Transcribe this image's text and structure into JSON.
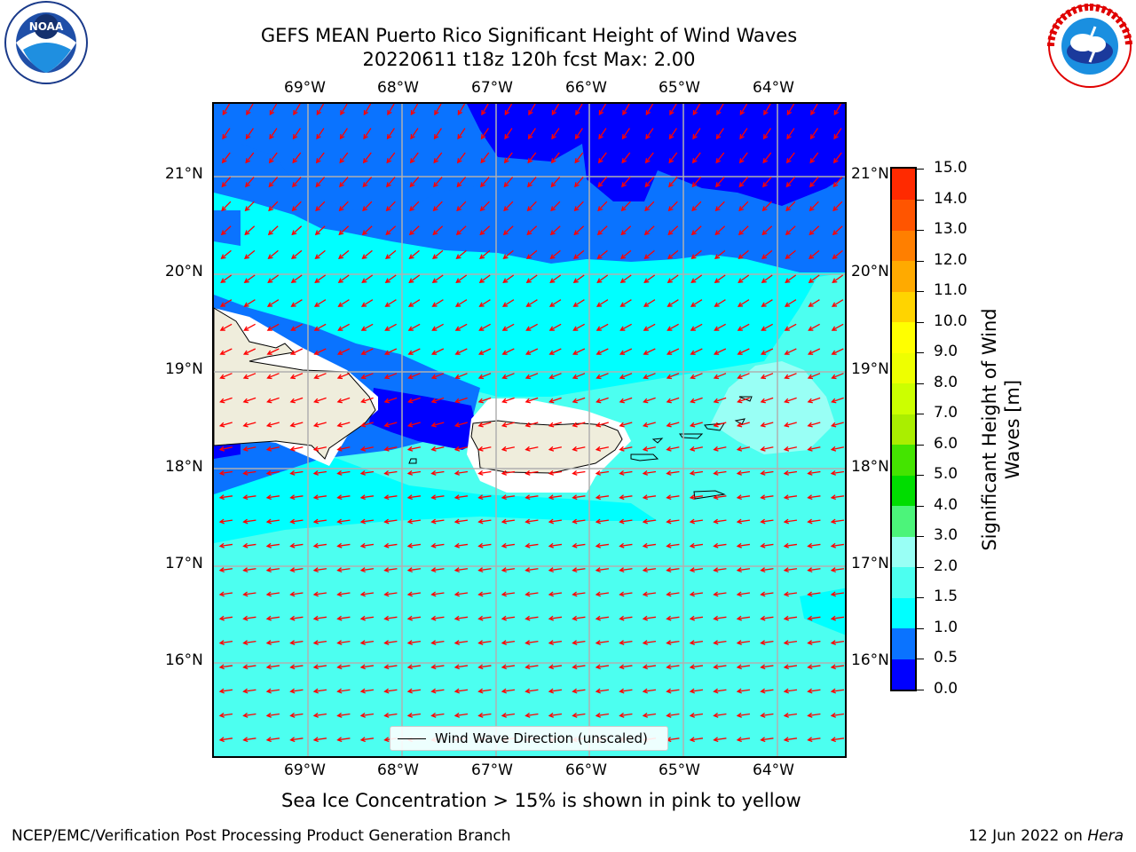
{
  "title": {
    "line1": "GEFS MEAN Puerto Rico Significant Height of Wind Waves",
    "line2": "20220611 t18z 120h fcst   Max: 2.00"
  },
  "logos": {
    "left": {
      "name": "NOAA",
      "ring_text": "NATIONAL OCEANIC AND ATMOSPHERIC ADMINISTRATION · U.S. DEPARTMENT OF COMMERCE"
    },
    "right": {
      "ring_text": "NATIONAL WEATHER SERVICE"
    }
  },
  "map": {
    "region": "Puerto Rico",
    "lon_labels": [
      "69°W",
      "68°W",
      "67°W",
      "66°W",
      "65°W",
      "64°W"
    ],
    "lat_labels": [
      "21°N",
      "20°N",
      "19°N",
      "18°N",
      "17°N",
      "16°N"
    ],
    "gridlines": true,
    "land_color": "#efeddc",
    "arrow_color": "#ff0000"
  },
  "legend": {
    "label": "Wind Wave Direction (unscaled)"
  },
  "colorbar": {
    "label": "Significant Height of Wind Waves [m]",
    "ticks": [
      "0.0",
      "0.5",
      "1.0",
      "1.5",
      "2.0",
      "3.0",
      "4.0",
      "5.0",
      "6.0",
      "7.0",
      "8.0",
      "9.0",
      "10.0",
      "11.0",
      "12.0",
      "13.0",
      "14.0",
      "15.0"
    ],
    "colors": [
      "#0000ff",
      "#0a73ff",
      "#00ffff",
      "#4cfff0",
      "#99fff5",
      "#4cf47a",
      "#00dd00",
      "#44e400",
      "#aaee00",
      "#ccff00",
      "#eeff00",
      "#ffff00",
      "#ffd400",
      "#ffaa00",
      "#ff7f00",
      "#ff5500",
      "#ff2a00",
      "#ff0000"
    ]
  },
  "subtitle": "Sea Ice Concentration > 15% is shown in pink to yellow",
  "footer": {
    "left": "NCEP/EMC/Verification Post Processing Product Generation Branch",
    "right_prefix": "12 Jun 2022 on ",
    "right_host": "Hera"
  }
}
